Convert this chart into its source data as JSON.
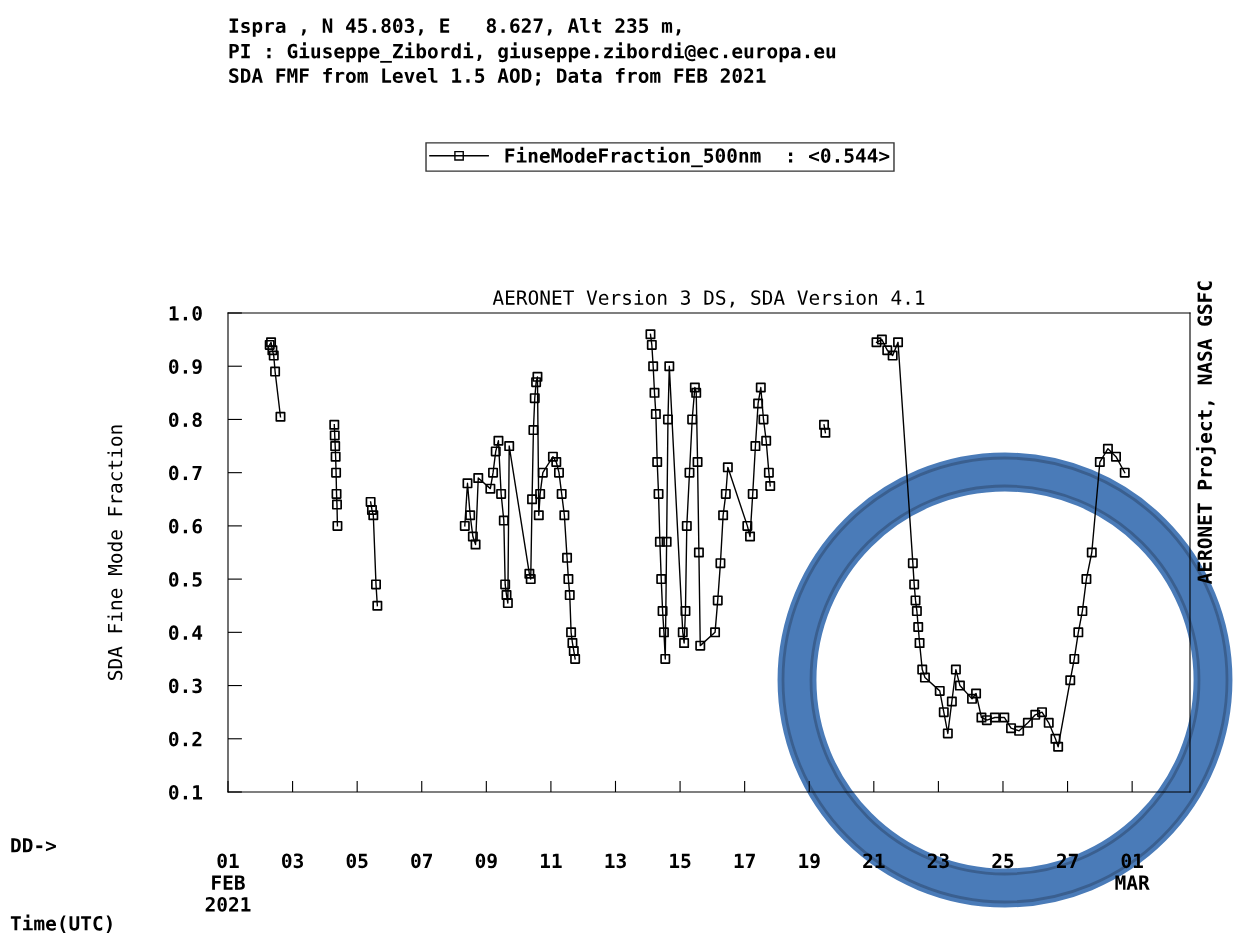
{
  "chart_data": {
    "type": "line",
    "title": "Ispra , N 45.803, E   8.627, Alt 235 m,\nPI : Giuseppe_Zibordi, giuseppe.zibordi@ec.europa.eu\nSDA FMF from Level 1.5 AOD; Data from FEB 2021",
    "subtitle": "AERONET Version 3 DS, SDA Version 4.1",
    "ylabel": "SDA Fine Mode Fraction",
    "annotations": [
      "DD->",
      "Time(UTC)",
      "AERONET Project, NASA GSFC"
    ],
    "legend": "top",
    "grid": false,
    "marker": "square",
    "line_style": "solid",
    "xlim": [
      "2021-02-01",
      "2021-03-02T19:00"
    ],
    "xticks": [
      {
        "value": "2021-02-01",
        "label": "01\nFEB\n2021"
      },
      {
        "value": "2021-02-03",
        "label": "03"
      },
      {
        "value": "2021-02-05",
        "label": "05"
      },
      {
        "value": "2021-02-07",
        "label": "07"
      },
      {
        "value": "2021-02-09",
        "label": "09"
      },
      {
        "value": "2021-02-11",
        "label": "11"
      },
      {
        "value": "2021-02-13",
        "label": "13"
      },
      {
        "value": "2021-02-15",
        "label": "15"
      },
      {
        "value": "2021-02-17",
        "label": "17"
      },
      {
        "value": "2021-02-19",
        "label": "19"
      },
      {
        "value": "2021-02-21",
        "label": "21"
      },
      {
        "value": "2021-02-23",
        "label": "23"
      },
      {
        "value": "2021-02-25",
        "label": "25"
      },
      {
        "value": "2021-02-27",
        "label": "27"
      },
      {
        "value": "2021-03-01",
        "label": "01\nMAR"
      }
    ],
    "ylim": [
      0.1,
      1.0
    ],
    "yticks": [
      {
        "value": 0.1,
        "label": "0.1"
      },
      {
        "value": 0.2,
        "label": "0.2"
      },
      {
        "value": 0.3,
        "label": "0.3"
      },
      {
        "value": 0.4,
        "label": "0.4"
      },
      {
        "value": 0.5,
        "label": "0.5"
      },
      {
        "value": 0.6,
        "label": "0.6"
      },
      {
        "value": 0.7,
        "label": "0.7"
      },
      {
        "value": 0.8,
        "label": "0.8"
      },
      {
        "value": 0.9,
        "label": "0.9"
      },
      {
        "value": 1.0,
        "label": "1.0"
      }
    ],
    "series": [
      {
        "name": "FineModeFraction_500nm  : <0.544>",
        "color": "#000000",
        "x": [
          "2021-02-02T07:00",
          "2021-02-02T08:00",
          "2021-02-02T09:00",
          "2021-02-02T10:00",
          "2021-02-02T11:00",
          "2021-02-02T15:00",
          "2021-02-03T12:00",
          "2021-02-04T07:00",
          "2021-02-04T07:20",
          "2021-02-04T07:40",
          "2021-02-04T08:00",
          "2021-02-04T08:20",
          "2021-02-04T08:40",
          "2021-02-04T09:00",
          "2021-02-04T09:20",
          "2021-02-04T20:00",
          "2021-02-05T10:00",
          "2021-02-05T11:00",
          "2021-02-05T12:00",
          "2021-02-05T14:00",
          "2021-02-05T15:00",
          "2021-02-07T00:00",
          "2021-02-08T08:00",
          "2021-02-08T10:00",
          "2021-02-08T12:00",
          "2021-02-08T14:00",
          "2021-02-08T16:00",
          "2021-02-08T18:00",
          "2021-02-09T03:00",
          "2021-02-09T05:00",
          "2021-02-09T07:00",
          "2021-02-09T09:00",
          "2021-02-09T11:00",
          "2021-02-09T13:00",
          "2021-02-09T14:00",
          "2021-02-09T15:00",
          "2021-02-09T16:00",
          "2021-02-09T17:00",
          "2021-02-10T08:00",
          "2021-02-10T09:00",
          "2021-02-10T10:00",
          "2021-02-10T11:00",
          "2021-02-10T12:00",
          "2021-02-10T13:00",
          "2021-02-10T14:00",
          "2021-02-10T15:00",
          "2021-02-10T16:00",
          "2021-02-10T18:00",
          "2021-02-11T01:30",
          "2021-02-11T04:00",
          "2021-02-11T06:00",
          "2021-02-11T08:00",
          "2021-02-11T10:00",
          "2021-02-11T12:00",
          "2021-02-11T13:00",
          "2021-02-11T14:00",
          "2021-02-11T15:00",
          "2021-02-11T16:00",
          "2021-02-11T17:00",
          "2021-02-11T18:00",
          "2021-02-12T20:00",
          "2021-02-14T02:00",
          "2021-02-14T03:00",
          "2021-02-14T04:00",
          "2021-02-14T05:00",
          "2021-02-14T06:00",
          "2021-02-14T07:00",
          "2021-02-14T08:00",
          "2021-02-14T09:00",
          "2021-02-14T10:00",
          "2021-02-14T11:00",
          "2021-02-14T12:00",
          "2021-02-14T13:00",
          "2021-02-14T14:00",
          "2021-02-14T15:00",
          "2021-02-14T16:00",
          "2021-02-15T02:00",
          "2021-02-15T03:00",
          "2021-02-15T04:00",
          "2021-02-15T05:00",
          "2021-02-15T07:00",
          "2021-02-15T09:00",
          "2021-02-15T11:00",
          "2021-02-15T12:00",
          "2021-02-15T13:00",
          "2021-02-15T14:00",
          "2021-02-15T15:00",
          "2021-02-16T02:00",
          "2021-02-16T04:00",
          "2021-02-16T06:00",
          "2021-02-16T08:00",
          "2021-02-16T10:00",
          "2021-02-16T11:30",
          "2021-02-17T02:00",
          "2021-02-17T04:00",
          "2021-02-17T06:00",
          "2021-02-17T08:00",
          "2021-02-17T10:00",
          "2021-02-17T12:00",
          "2021-02-17T14:00",
          "2021-02-17T16:00",
          "2021-02-17T18:00",
          "2021-02-17T19:00",
          "2021-02-18T12:00",
          "2021-02-19T11:00",
          "2021-02-19T12:00",
          "2021-02-20T12:00",
          "2021-02-21T02:00",
          "2021-02-21T06:00",
          "2021-02-21T10:00",
          "2021-02-21T14:00",
          "2021-02-21T18:00",
          "2021-02-22T05:00",
          "2021-02-22T06:00",
          "2021-02-22T07:00",
          "2021-02-22T08:00",
          "2021-02-22T09:00",
          "2021-02-22T10:00",
          "2021-02-22T12:00",
          "2021-02-22T14:00",
          "2021-02-23T01:00",
          "2021-02-23T04:00",
          "2021-02-23T07:00",
          "2021-02-23T10:00",
          "2021-02-23T13:00",
          "2021-02-23T16:00",
          "2021-02-24T01:00",
          "2021-02-24T04:00",
          "2021-02-24T08:00",
          "2021-02-24T12:00",
          "2021-02-24T18:00",
          "2021-02-25T01:00",
          "2021-02-25T06:00",
          "2021-02-25T12:00",
          "2021-02-25T18:30",
          "2021-02-26T00:00",
          "2021-02-26T05:00",
          "2021-02-26T10:00",
          "2021-02-26T15:00",
          "2021-02-26T17:00",
          "2021-02-27T02:00",
          "2021-02-27T05:00",
          "2021-02-27T08:00",
          "2021-02-27T11:00",
          "2021-02-27T14:00",
          "2021-02-27T18:00",
          "2021-02-28T00:00",
          "2021-02-28T06:00",
          "2021-02-28T12:00",
          "2021-02-28T18:30"
        ],
        "values": [
          0.94,
          0.945,
          0.93,
          0.92,
          0.89,
          0.805,
          null,
          0.79,
          0.77,
          0.75,
          0.73,
          0.7,
          0.66,
          0.64,
          0.6,
          null,
          0.645,
          0.63,
          0.62,
          0.49,
          0.45,
          null,
          0.6,
          0.68,
          0.62,
          0.58,
          0.565,
          0.69,
          0.67,
          0.7,
          0.74,
          0.76,
          0.66,
          0.61,
          0.49,
          0.47,
          0.455,
          0.75,
          0.51,
          0.5,
          0.65,
          0.78,
          0.84,
          0.87,
          0.88,
          0.62,
          0.66,
          0.7,
          0.73,
          0.72,
          0.7,
          0.66,
          0.62,
          0.54,
          0.5,
          0.47,
          0.4,
          0.38,
          0.365,
          0.35,
          null,
          0.96,
          0.94,
          0.9,
          0.85,
          0.81,
          0.72,
          0.66,
          0.57,
          0.5,
          0.44,
          0.4,
          0.35,
          0.57,
          0.8,
          0.9,
          0.4,
          0.38,
          0.44,
          0.6,
          0.7,
          0.8,
          0.86,
          0.85,
          0.72,
          0.55,
          0.375,
          0.4,
          0.46,
          0.53,
          0.62,
          0.66,
          0.71,
          0.6,
          0.58,
          0.66,
          0.75,
          0.83,
          0.86,
          0.8,
          0.76,
          0.7,
          0.675,
          null,
          0.79,
          0.775,
          null,
          0.945,
          0.95,
          0.93,
          0.92,
          0.945,
          0.53,
          0.49,
          0.46,
          0.44,
          0.41,
          0.38,
          0.33,
          0.315,
          0.29,
          0.25,
          0.21,
          0.27,
          0.33,
          0.3,
          0.275,
          0.285,
          0.24,
          0.235,
          0.24,
          0.24,
          0.22,
          0.215,
          0.23,
          0.245,
          0.25,
          0.23,
          0.2,
          0.185,
          0.31,
          0.35,
          0.4,
          0.44,
          0.5,
          0.55,
          0.72,
          0.745,
          0.73,
          0.7
        ]
      }
    ]
  }
}
